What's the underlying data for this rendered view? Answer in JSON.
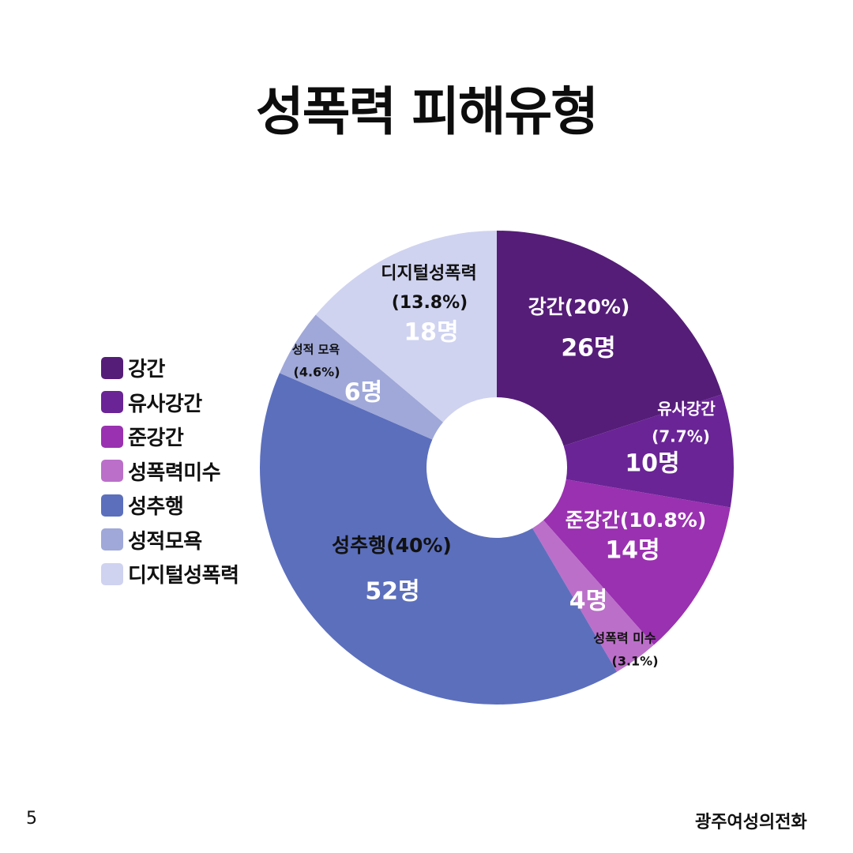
{
  "chart_data": {
    "type": "pie",
    "title": "성폭력 피해유형",
    "categories": [
      "강간",
      "유사강간",
      "준강간",
      "성폭력미수",
      "성추행",
      "성적모욕",
      "디지털성폭력"
    ],
    "values": [
      26,
      10,
      14,
      4,
      52,
      6,
      18
    ],
    "colors": [
      "#551d78",
      "#6a2496",
      "#9a31b0",
      "#bb6fc9",
      "#5c6fbd",
      "#9fa8d8",
      "#cfd3f0"
    ],
    "slice_labels": [
      {
        "name": "강간(20%)",
        "percent": "",
        "count": "26명"
      },
      {
        "name": "유사강간",
        "percent": "(7.7%)",
        "count": "10명"
      },
      {
        "name": "준강간(10.8%)",
        "percent": "",
        "count": "14명"
      },
      {
        "name": "성폭력 미수",
        "percent": "(3.1%)",
        "count": "4명"
      },
      {
        "name": "성추행(40%)",
        "percent": "",
        "count": "52명"
      },
      {
        "name": "성적 모욕",
        "percent": "(4.6%)",
        "count": "6명"
      },
      {
        "name": "디지털성폭력",
        "percent": "(13.8%)",
        "count": "18명"
      }
    ],
    "legend": {
      "placement": "left",
      "entries": [
        "강간",
        "유사강간",
        "준강간",
        "성폭력미수",
        "성추행",
        "성적모욕",
        "디지털성폭력"
      ]
    },
    "donut": true
  },
  "footer": {
    "page_number": "5",
    "logo_text": "광주여성의전화"
  }
}
